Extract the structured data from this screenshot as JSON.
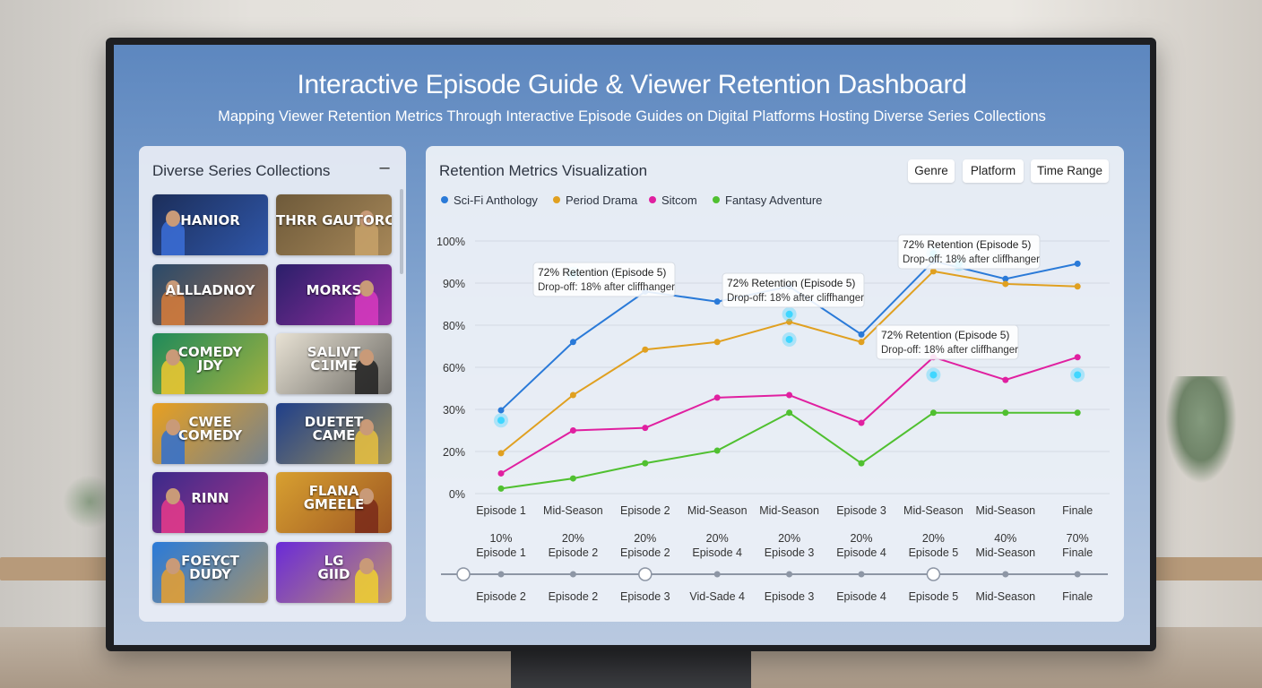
{
  "dashboard": {
    "title": "Interactive Episode Guide & Viewer Retention Dashboard",
    "subtitle": "Mapping Viewer Retention Metrics Through Interactive Episode Guides on Digital Platforms Hosting Diverse Series Collections"
  },
  "collections": {
    "title": "Diverse Series Collections",
    "collapse_icon": "minus-icon",
    "collapse_symbol": "–",
    "thumbnails": [
      {
        "text": "HANIOR",
        "bg": "#1c2e5a",
        "accent": "#3b6fd8"
      },
      {
        "text": "THRR GAUTORCY",
        "bg": "#6e5a3a",
        "accent": "#c8a26a"
      },
      {
        "text": "ALLLADNOY",
        "bg": "#2a4a6a",
        "accent": "#d87c3a"
      },
      {
        "text": "MORKS",
        "bg": "#2a1f6a",
        "accent": "#d83ac0"
      },
      {
        "text": "COMEDY\nJDY",
        "bg": "#1f8a5a",
        "accent": "#f0c830"
      },
      {
        "text": "SALIVT\nC1IME",
        "bg": "#e8e2d4",
        "accent": "#222222"
      },
      {
        "text": "CWEE\nCOMEDY",
        "bg": "#e8a020",
        "accent": "#3070d0"
      },
      {
        "text": "DUETET\nCAME",
        "bg": "#1f3f8a",
        "accent": "#e8c040"
      },
      {
        "text": "RINN",
        "bg": "#3a2a8a",
        "accent": "#e83a8a"
      },
      {
        "text": "FLANA\nGMEELE",
        "bg": "#d8a030",
        "accent": "#7a2a1a"
      },
      {
        "text": "FOEYCT\nDUDY",
        "bg": "#2a7ad8",
        "accent": "#e8a030"
      },
      {
        "text": "LG\nGIID",
        "bg": "#6a2ad8",
        "accent": "#f0d030"
      }
    ]
  },
  "retention": {
    "title": "Retention Metrics Visualization",
    "filters": [
      "Genre",
      "Platform",
      "Time Range"
    ]
  },
  "chart_data": {
    "type": "line",
    "y_tick_labels": [
      "0%",
      "20%",
      "30%",
      "60%",
      "80%",
      "90%",
      "100%"
    ],
    "x_tick_labels": [
      "Episode 1",
      "Mid-Season",
      "Episode 2",
      "Mid-Season",
      "Mid-Season",
      "Episode 3",
      "Mid-Season",
      "Mid-Season",
      "Finale"
    ],
    "grid": true,
    "legend_placement": "top-left",
    "series": [
      {
        "name": "Sci-Fi Anthology",
        "color": "#2a7ad8",
        "values": [
          33,
          60,
          80,
          76,
          82,
          63,
          92,
          85,
          91
        ]
      },
      {
        "name": "Period Drama",
        "color": "#e0a020",
        "values": [
          16,
          39,
          57,
          60,
          68,
          60,
          88,
          83,
          82
        ]
      },
      {
        "name": "Sitcom",
        "color": "#e020a0",
        "values": [
          8,
          25,
          26,
          38,
          39,
          28,
          54,
          45,
          54
        ]
      },
      {
        "name": "Fantasy Adventure",
        "color": "#50c030",
        "values": [
          2,
          6,
          12,
          17,
          32,
          12,
          32,
          32,
          32
        ]
      }
    ],
    "annotations": [
      {
        "line1": "72% Retention (Episode 5)",
        "line2": "Drop-off: 18% after cliffhanger"
      },
      {
        "line1": "72% Retention (Episode 5)",
        "line2": "Drop-off: 18% after cliffhanger"
      },
      {
        "line1": "72% Retention (Episode 5)",
        "line2": "Drop-off: 18% after cliffhanger"
      },
      {
        "line1": "72% Retention (Episode 5)",
        "line2": "Drop-off: 18% after cliffhanger"
      }
    ],
    "timeline_top": [
      {
        "pct": "10%",
        "label": "Episode 1"
      },
      {
        "pct": "20%",
        "label": "Episode 2"
      },
      {
        "pct": "20%",
        "label": "Episode 2"
      },
      {
        "pct": "20%",
        "label": "Episode 4"
      },
      {
        "pct": "20%",
        "label": "Episode 3"
      },
      {
        "pct": "20%",
        "label": "Episode 4"
      },
      {
        "pct": "20%",
        "label": "Episode 5"
      },
      {
        "pct": "40%",
        "label": "Mid-Season"
      },
      {
        "pct": "70%",
        "label": "Finale"
      }
    ],
    "timeline_bottom": [
      "Episode 2",
      "Episode 2",
      "Episode 3",
      "Vid-Sade 4",
      "Episode 3",
      "Episode 4",
      "Episode 5",
      "Mid-Season",
      "Finale"
    ]
  }
}
